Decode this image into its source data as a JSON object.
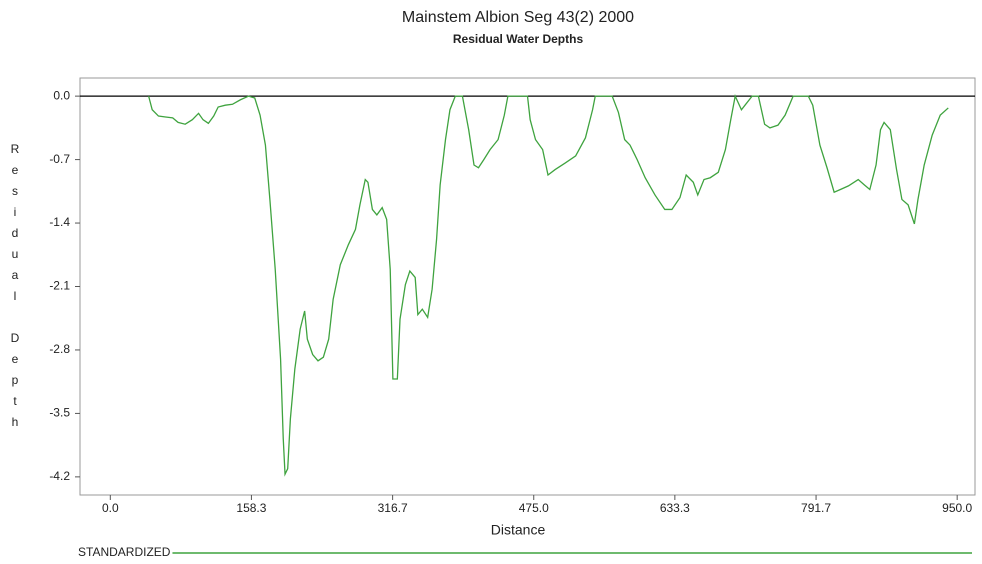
{
  "chart_data": {
    "type": "line",
    "title": "Mainstem Albion Seg 43(2)  2000",
    "subtitle": "Residual Water Depths",
    "x_label": "Distance",
    "y_label": "Residual Depth",
    "xlim": [
      -34,
      970
    ],
    "ylim": [
      -4.4,
      0.2
    ],
    "xticks": [
      {
        "value": 0,
        "label": "0.0"
      },
      158.3,
      316.7,
      {
        "value": 475,
        "label": "475.0"
      },
      633.3,
      791.7,
      {
        "value": 950,
        "label": "950.0"
      }
    ],
    "yticks": [
      {
        "value": 0,
        "label": "0.0"
      },
      -0.7,
      -1.4,
      -2.1,
      -2.8,
      -3.5,
      -4.2
    ],
    "zero_line": true,
    "x": [
      43,
      47,
      54,
      62,
      70,
      76,
      84,
      92,
      99,
      104,
      110,
      116,
      121,
      129,
      137,
      146,
      155,
      162,
      168,
      174,
      179,
      185,
      191,
      194,
      196,
      199,
      202,
      207,
      213,
      218,
      221,
      227,
      233,
      239,
      245,
      250,
      258,
      267,
      275,
      280,
      286,
      289,
      294,
      299,
      305,
      310,
      314,
      317,
      322,
      325,
      331,
      336,
      342,
      345,
      350,
      356,
      361,
      366,
      370,
      376,
      381,
      387,
      395,
      402,
      408,
      413,
      419,
      426,
      435,
      442,
      446,
      468,
      471,
      477,
      485,
      491,
      499,
      510,
      522,
      533,
      541,
      544,
      563,
      570,
      577,
      583,
      591,
      600,
      611,
      622,
      630,
      639,
      646,
      654,
      659,
      666,
      673,
      682,
      690,
      696,
      701,
      708,
      712,
      720,
      727,
      734,
      740,
      749,
      757,
      766,
      783,
      788,
      796,
      804,
      812,
      819,
      828,
      839,
      846,
      852,
      859,
      864,
      868,
      875,
      882,
      888,
      895,
      902,
      906,
      913,
      922,
      931,
      940
    ],
    "series": [
      {
        "name": "STANDARDIZED",
        "color": "#3fa33f",
        "values": [
          0,
          -0.15,
          -0.22,
          -0.23,
          -0.24,
          -0.29,
          -0.31,
          -0.26,
          -0.19,
          -0.26,
          -0.3,
          -0.22,
          -0.12,
          -0.1,
          -0.09,
          -0.04,
          0,
          -0.02,
          -0.21,
          -0.54,
          -1.14,
          -1.91,
          -2.9,
          -3.78,
          -4.17,
          -4.11,
          -3.56,
          -3.01,
          -2.57,
          -2.37,
          -2.68,
          -2.85,
          -2.92,
          -2.88,
          -2.68,
          -2.24,
          -1.86,
          -1.64,
          -1.47,
          -1.2,
          -0.92,
          -0.95,
          -1.25,
          -1.31,
          -1.23,
          -1.36,
          -1.91,
          -3.12,
          -3.12,
          -2.46,
          -2.08,
          -1.93,
          -2.0,
          -2.41,
          -2.35,
          -2.44,
          -2.13,
          -1.58,
          -0.98,
          -0.48,
          -0.15,
          0,
          0,
          -0.37,
          -0.76,
          -0.79,
          -0.7,
          -0.59,
          -0.48,
          -0.21,
          0,
          0,
          -0.26,
          -0.48,
          -0.59,
          -0.87,
          -0.81,
          -0.74,
          -0.66,
          -0.46,
          -0.15,
          0,
          0,
          -0.18,
          -0.48,
          -0.54,
          -0.7,
          -0.9,
          -1.09,
          -1.25,
          -1.25,
          -1.12,
          -0.87,
          -0.95,
          -1.09,
          -0.92,
          -0.9,
          -0.84,
          -0.59,
          -0.26,
          0,
          -0.15,
          -0.1,
          0,
          0,
          -0.31,
          -0.35,
          -0.32,
          -0.21,
          0,
          0,
          -0.1,
          -0.54,
          -0.79,
          -1.06,
          -1.03,
          -0.99,
          -0.92,
          -0.98,
          -1.03,
          -0.76,
          -0.37,
          -0.29,
          -0.37,
          -0.81,
          -1.14,
          -1.2,
          -1.41,
          -1.14,
          -0.76,
          -0.43,
          -0.21,
          -0.13
        ]
      }
    ]
  }
}
